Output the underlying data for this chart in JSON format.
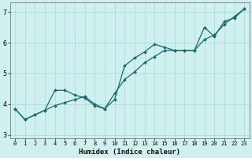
{
  "xlabel": "Humidex (Indice chaleur)",
  "xlim": [
    -0.5,
    23.5
  ],
  "ylim": [
    2.9,
    7.3
  ],
  "yticks": [
    3,
    4,
    5,
    6,
    7
  ],
  "xticks": [
    0,
    1,
    2,
    3,
    4,
    5,
    6,
    7,
    8,
    9,
    10,
    11,
    12,
    13,
    14,
    15,
    16,
    17,
    18,
    19,
    20,
    21,
    22,
    23
  ],
  "background_color": "#cff0ee",
  "grid_color": "#aadddd",
  "line_color": "#1a6b6b",
  "series1_x": [
    0,
    1,
    2,
    3,
    4,
    5,
    6,
    7,
    8,
    9,
    10,
    11,
    12,
    13,
    14,
    15,
    16,
    17,
    18,
    19,
    20,
    21,
    22,
    23
  ],
  "series1_y": [
    3.85,
    3.5,
    3.65,
    3.8,
    4.45,
    4.45,
    4.3,
    4.2,
    3.95,
    3.85,
    4.15,
    5.25,
    5.5,
    5.7,
    5.95,
    5.85,
    5.75,
    5.75,
    5.75,
    6.5,
    6.2,
    6.7,
    6.8,
    7.1
  ],
  "series2_x": [
    0,
    1,
    2,
    3,
    4,
    5,
    6,
    7,
    8,
    9,
    10,
    11,
    12,
    13,
    14,
    15,
    16,
    17,
    18,
    19,
    20,
    21,
    22,
    23
  ],
  "series2_y": [
    3.85,
    3.5,
    3.65,
    3.8,
    3.95,
    4.05,
    4.15,
    4.25,
    4.0,
    3.85,
    4.35,
    4.8,
    5.05,
    5.35,
    5.55,
    5.75,
    5.75,
    5.75,
    5.75,
    6.1,
    6.25,
    6.6,
    6.85,
    7.1
  ]
}
